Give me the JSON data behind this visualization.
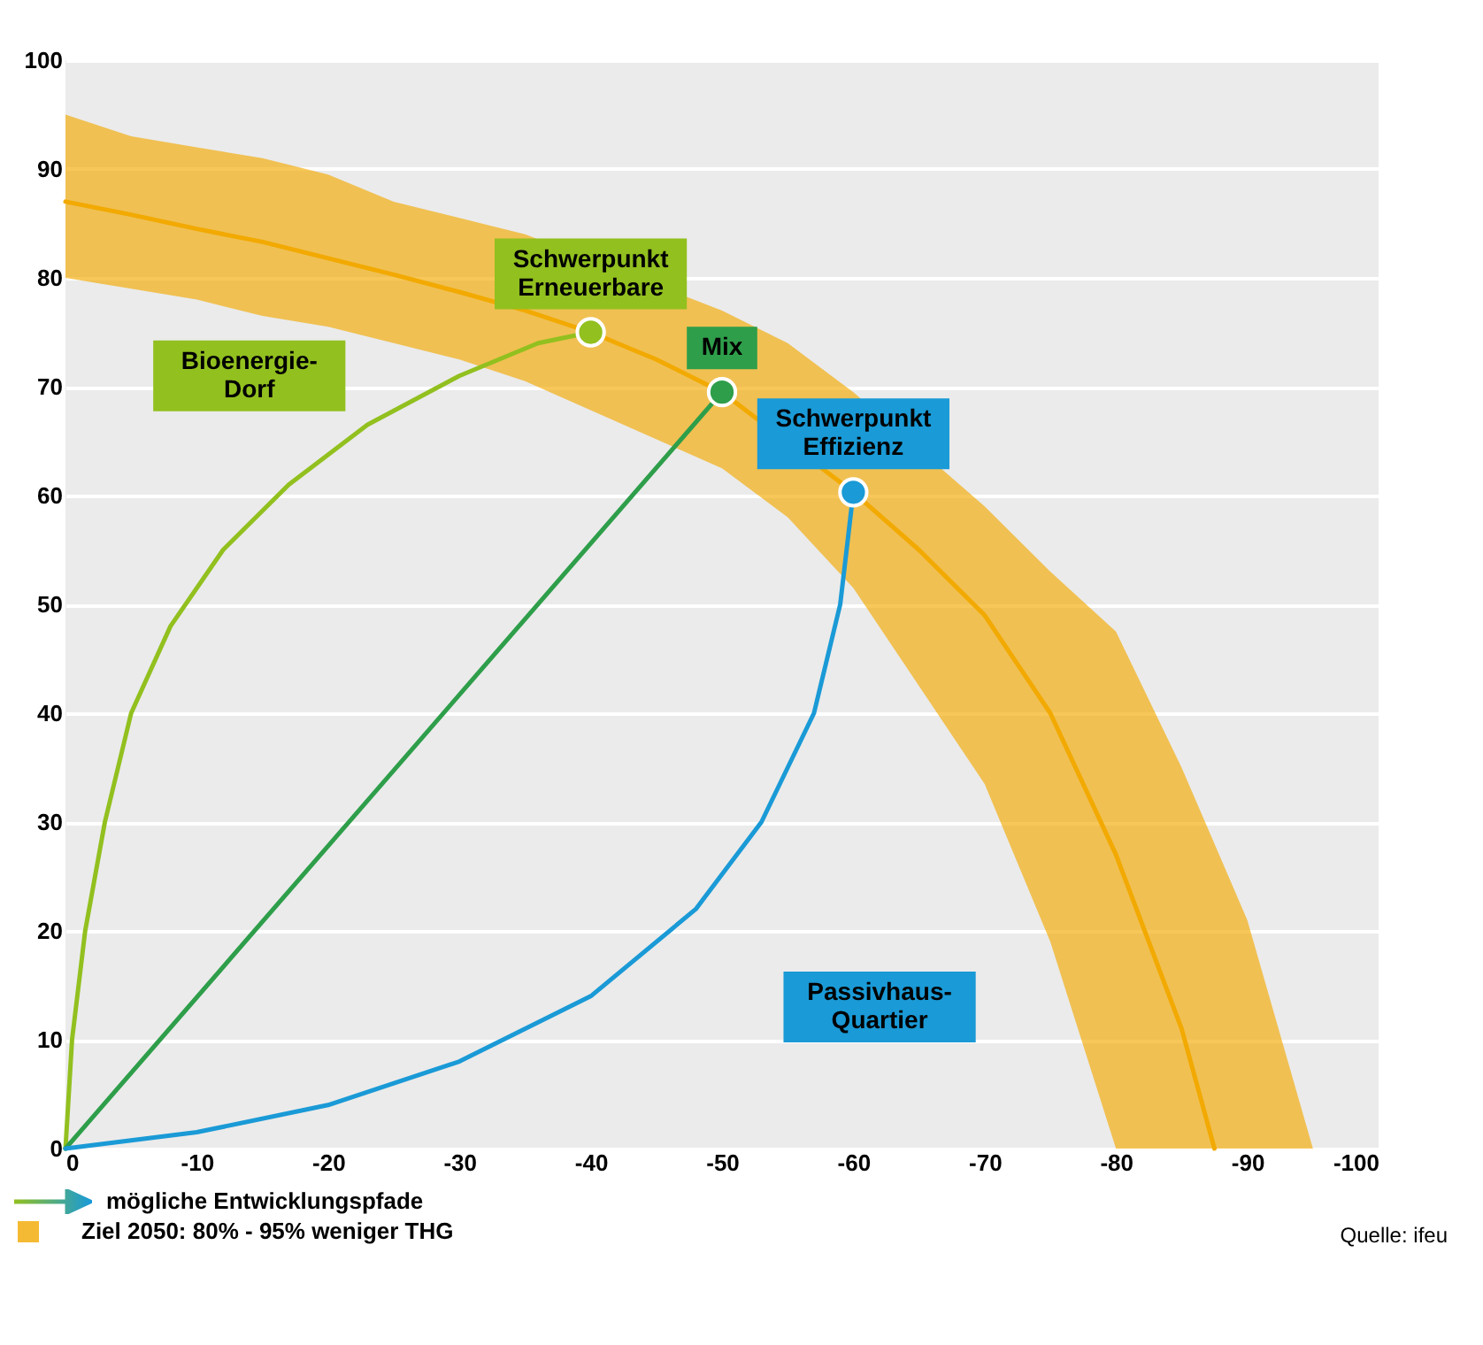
{
  "chart_data": {
    "type": "line",
    "xlim": [
      0,
      -100
    ],
    "ylim": [
      0,
      100
    ],
    "xticks": [
      0,
      -10,
      -20,
      -30,
      -40,
      -50,
      -60,
      -70,
      -80,
      -90,
      -100
    ],
    "yticks": [
      0,
      10,
      20,
      30,
      40,
      50,
      60,
      70,
      80,
      90,
      100
    ],
    "grid": "y",
    "legend": "bottom left",
    "series": [
      {
        "name": "Ziel 2050: 80% - 95% weniger THG",
        "color": "#f2a900",
        "x": [
          0,
          -5,
          -10,
          -15,
          -20,
          -25,
          -30,
          -35,
          -40,
          -45,
          -50,
          -55,
          -60,
          -65,
          -70,
          -75,
          -80,
          -85,
          -87.5,
          -90,
          -95
        ],
        "values": [
          87,
          85.8,
          84.5,
          83.3,
          81.8,
          80.3,
          78.7,
          77,
          75,
          72.5,
          69.5,
          null,
          60.3,
          55,
          49,
          40,
          27,
          11,
          0,
          null,
          null
        ],
        "lower": [
          80,
          79,
          78,
          76.5,
          75.5,
          74,
          72.5,
          70.5,
          null,
          null,
          62.5,
          58,
          51.5,
          null,
          33.5,
          19,
          0,
          0,
          0,
          0,
          0
        ],
        "upper": [
          95,
          93,
          92,
          91,
          89.5,
          87,
          85.5,
          84,
          null,
          null,
          77,
          74,
          69.5,
          null,
          59,
          53,
          47.5,
          35,
          28,
          21,
          0
        ]
      },
      {
        "color": "#92c01f",
        "x": [
          0,
          -0.5,
          -1.5,
          -3,
          -5,
          -8,
          -12,
          -17,
          -23,
          -30,
          -36,
          -40
        ],
        "values": [
          0,
          10,
          20,
          30,
          40,
          48,
          55,
          61,
          66.5,
          71,
          74,
          75
        ]
      },
      {
        "color": "#2e9e4a",
        "x": [
          0,
          -50
        ],
        "values": [
          0,
          69.5
        ]
      },
      {
        "color": "#1a9ad6",
        "x": [
          0,
          -10,
          -20,
          -30,
          -40,
          -48,
          -53,
          -57,
          -59,
          -60
        ],
        "values": [
          0,
          1.5,
          4,
          8,
          14,
          22,
          30,
          40,
          50,
          60.3
        ]
      },
      {
        "type": "scatter",
        "marker": "circle",
        "x": [
          -40,
          -50,
          -60
        ],
        "values": [
          75,
          69.5,
          60.3
        ],
        "colors": [
          "#92c01f",
          "#2e9e4a",
          "#1a9ad6"
        ]
      }
    ],
    "annotations": [
      {
        "text": "Schwerpunkt Erneuerbare",
        "x": -40,
        "y": 75
      },
      {
        "text": "Mix",
        "x": -50,
        "y": 69.5
      },
      {
        "text": "Schwerpunkt Effizienz",
        "x": -60,
        "y": 60.3
      },
      "Bioenergie-Dorf",
      "Passivhaus-Quartier",
      "mögliche Entwicklungspfade",
      "Quelle: ifeu"
    ]
  }
}
